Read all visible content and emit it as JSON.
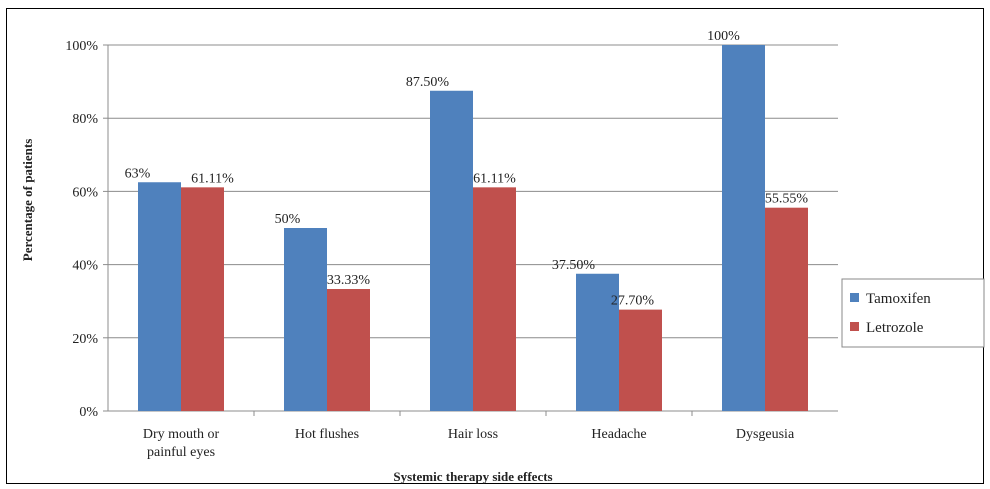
{
  "chart_data": {
    "type": "bar",
    "title": "",
    "xlabel": "Systemic therapy  side effects",
    "ylabel": "Percentage of patients",
    "categories": [
      [
        "Dry mouth or",
        "painful eyes"
      ],
      [
        "Hot flushes"
      ],
      [
        "Hair loss"
      ],
      [
        "Headache"
      ],
      [
        "Dysgeusia"
      ]
    ],
    "ylim": [
      0,
      100
    ],
    "yticks": [
      "0%",
      "20%",
      "40%",
      "60%",
      "80%",
      "100%"
    ],
    "grid": true,
    "legend_position": "right",
    "series": [
      {
        "name": "Tamoxifen",
        "color": "#4F81BD",
        "values": [
          62.5,
          50,
          87.5,
          37.5,
          100
        ],
        "labels": [
          "63%",
          "50%",
          "87.50%",
          "37.50%",
          "100%"
        ]
      },
      {
        "name": "Letrozole",
        "color": "#C0504D",
        "values": [
          61.11,
          33.33,
          61.11,
          27.7,
          55.55
        ],
        "labels": [
          "61.11%",
          "33.33%",
          "61.11%",
          "27.70%",
          "55.55%"
        ]
      }
    ]
  }
}
